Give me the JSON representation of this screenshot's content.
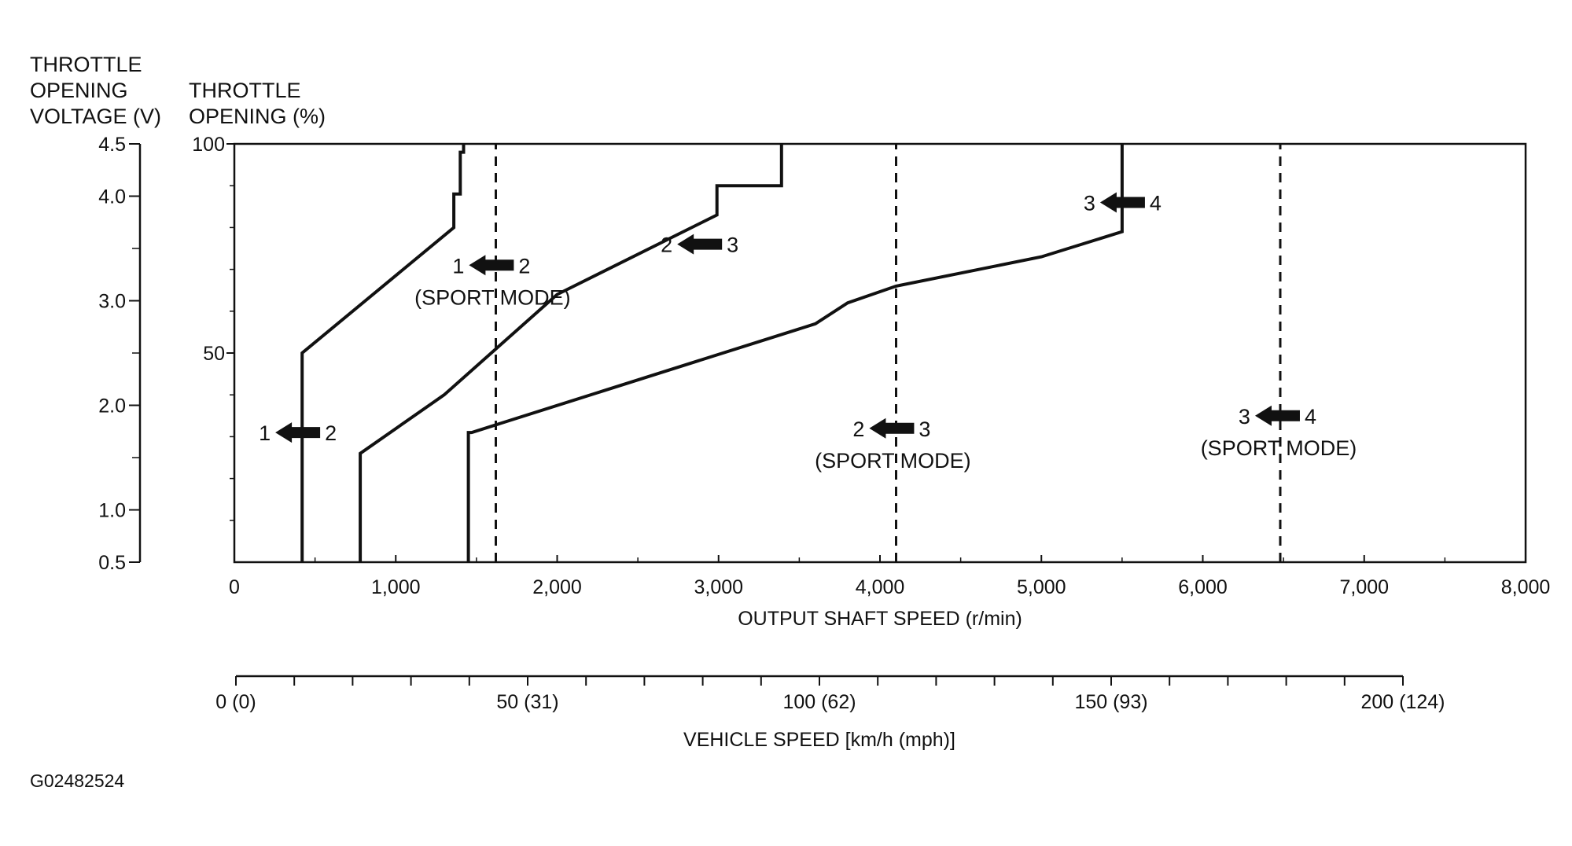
{
  "labels": {
    "voltage_header": [
      "THROTTLE",
      "OPENING",
      "VOLTAGE (V)"
    ],
    "percent_header": [
      "THROTTLE",
      "OPENING (%)"
    ],
    "figure_id": "G02482524"
  },
  "chart_data": {
    "type": "line",
    "title": "",
    "xlabel": "OUTPUT SHAFT SPEED (r/min)",
    "xlim": [
      0,
      8000
    ],
    "x_ticks": [
      0,
      1000,
      2000,
      3000,
      4000,
      5000,
      6000,
      7000,
      8000
    ],
    "x_tick_labels": [
      "0",
      "1,000",
      "2,000",
      "3,000",
      "4,000",
      "5,000",
      "6,000",
      "7,000",
      "8,000"
    ],
    "ylim": [
      0,
      100
    ],
    "y_ticks_percent": [
      50,
      100
    ],
    "y_tick_labels_percent": [
      "50",
      "100"
    ],
    "y_voltage_axis": {
      "range": [
        0.5,
        4.5
      ],
      "labeled_ticks": [
        0.5,
        1.0,
        2.0,
        3.0,
        4.0,
        4.5
      ],
      "labels": [
        "0.5",
        "1.0",
        "2.0",
        "3.0",
        "4.0",
        "4.5"
      ]
    },
    "vehicle_speed_axis": {
      "label": "VEHICLE SPEED [km/h (mph)]",
      "range_kmh": [
        0,
        200
      ],
      "labeled_ticks": [
        0,
        50,
        100,
        150,
        200
      ],
      "labels": [
        "0 (0)",
        "50 (31)",
        "100 (62)",
        "150 (93)",
        "200 (124)"
      ]
    },
    "series": [
      {
        "style": "solid",
        "x": [
          420,
          420,
          1360,
          1360,
          1400,
          1400,
          1420,
          1420
        ],
        "y": [
          0,
          50,
          80,
          88,
          88,
          98,
          98,
          100
        ]
      },
      {
        "style": "solid",
        "x": [
          780,
          780,
          1300,
          2000,
          2990,
          2990,
          3390,
          3390
        ],
        "y": [
          0,
          26,
          40,
          64,
          83,
          90,
          90,
          100
        ]
      },
      {
        "style": "solid",
        "x": [
          1450,
          1450,
          1470,
          3600,
          3800,
          4100,
          5000,
          5500,
          5500
        ],
        "y": [
          0,
          31,
          31,
          57,
          62,
          66,
          73,
          79,
          100
        ]
      },
      {
        "style": "dashed",
        "x": [
          1620,
          1620
        ],
        "y": [
          0,
          100
        ]
      },
      {
        "style": "dashed",
        "x": [
          4100,
          4100
        ],
        "y": [
          0,
          100
        ]
      },
      {
        "style": "dashed",
        "x": [
          6480,
          6480
        ],
        "y": [
          0,
          100
        ]
      }
    ],
    "annotations": [
      {
        "from": "1",
        "to": "2",
        "sub": "",
        "x": 400,
        "y": 31
      },
      {
        "from": "1",
        "to": "2",
        "sub": "(SPORT MODE)",
        "x": 1600,
        "y": 71
      },
      {
        "from": "2",
        "to": "3",
        "sub": "",
        "x": 2890,
        "y": 76
      },
      {
        "from": "2",
        "to": "3",
        "sub": "(SPORT MODE)",
        "x": 4080,
        "y": 32
      },
      {
        "from": "3",
        "to": "4",
        "sub": "",
        "x": 5510,
        "y": 86
      },
      {
        "from": "3",
        "to": "4",
        "sub": "(SPORT MODE)",
        "x": 6470,
        "y": 35
      }
    ]
  }
}
